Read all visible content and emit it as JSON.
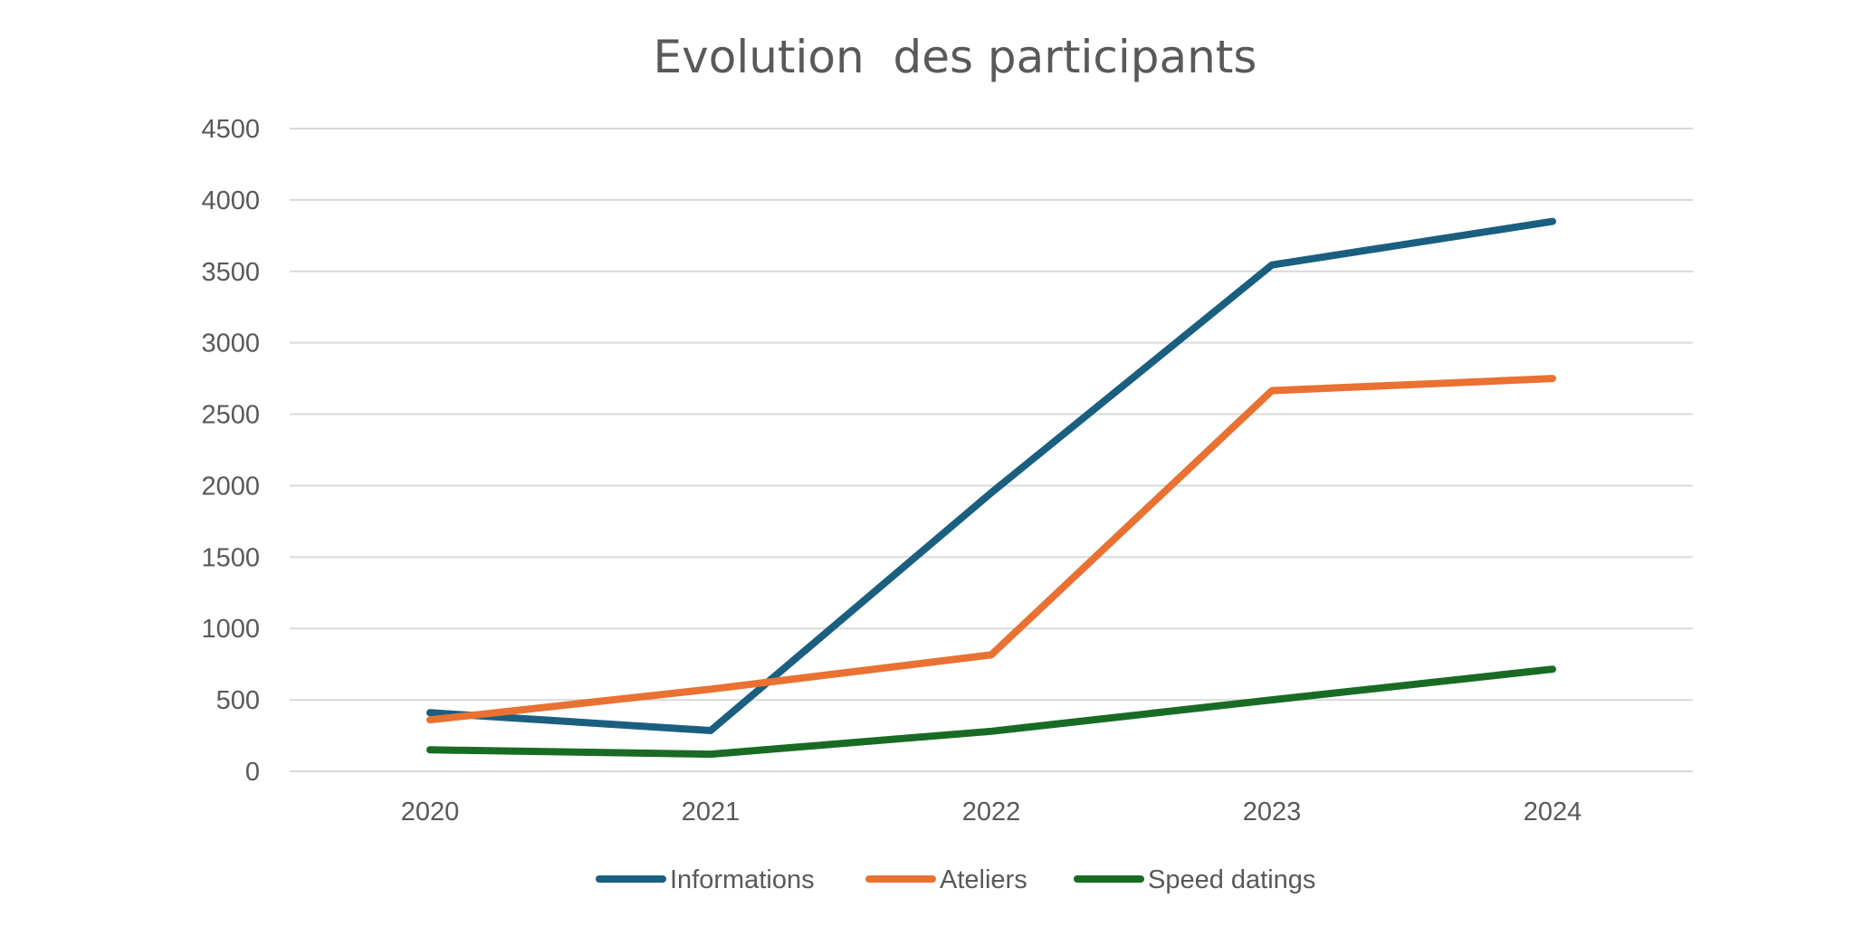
{
  "chart_data": {
    "type": "line",
    "title": "Evolution  des participants",
    "categories": [
      "2020",
      "2021",
      "2022",
      "2023",
      "2024"
    ],
    "ylim": [
      0,
      4500
    ],
    "yticks": [
      0,
      500,
      1000,
      1500,
      2000,
      2500,
      3000,
      3500,
      4000,
      4500
    ],
    "grid": true,
    "legend_position": "bottom",
    "series": [
      {
        "name": "Informations",
        "color": "#1a5f80",
        "values": [
          410,
          285,
          1950,
          3545,
          3850
        ]
      },
      {
        "name": "Ateliers",
        "color": "#e97132",
        "values": [
          360,
          575,
          815,
          2665,
          2750
        ]
      },
      {
        "name": "Speed datings",
        "color": "#196b24",
        "values": [
          150,
          120,
          280,
          500,
          715
        ]
      }
    ]
  }
}
